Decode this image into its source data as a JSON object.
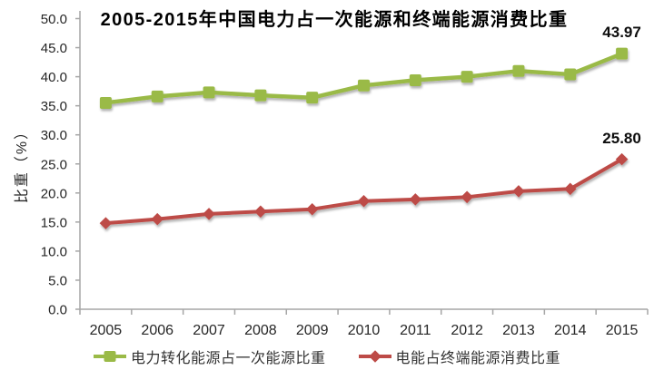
{
  "chart_data": {
    "type": "line",
    "title": "2005-2015年中国电力占一次能源和终端能源消费比重",
    "categories": [
      "2005",
      "2006",
      "2007",
      "2008",
      "2009",
      "2010",
      "2011",
      "2012",
      "2013",
      "2014",
      "2015"
    ],
    "series": [
      {
        "name": "电力转化能源占一次能源比重",
        "color": "#9aba47",
        "marker": "square",
        "values": [
          35.5,
          36.6,
          37.3,
          36.8,
          36.4,
          38.5,
          39.4,
          40.0,
          41.0,
          40.4,
          43.97
        ],
        "end_label": "43.97"
      },
      {
        "name": "电能占终端能源消费比重",
        "color": "#bd4b47",
        "marker": "diamond",
        "values": [
          14.8,
          15.5,
          16.4,
          16.8,
          17.2,
          18.6,
          18.9,
          19.3,
          20.3,
          20.7,
          25.8
        ],
        "end_label": "25.80"
      }
    ],
    "xlabel": "",
    "ylabel": "比重（%）",
    "ylim": [
      0,
      50
    ],
    "ytick_step": 5,
    "ytick_labels": [
      "50.0",
      "45.0",
      "40.0",
      "35.0",
      "30.0",
      "25.0",
      "20.0",
      "15.0",
      "10.0",
      "5.0",
      "0.0"
    ],
    "grid": false,
    "legend_position": "bottom",
    "data_labels": "last-point-only"
  }
}
